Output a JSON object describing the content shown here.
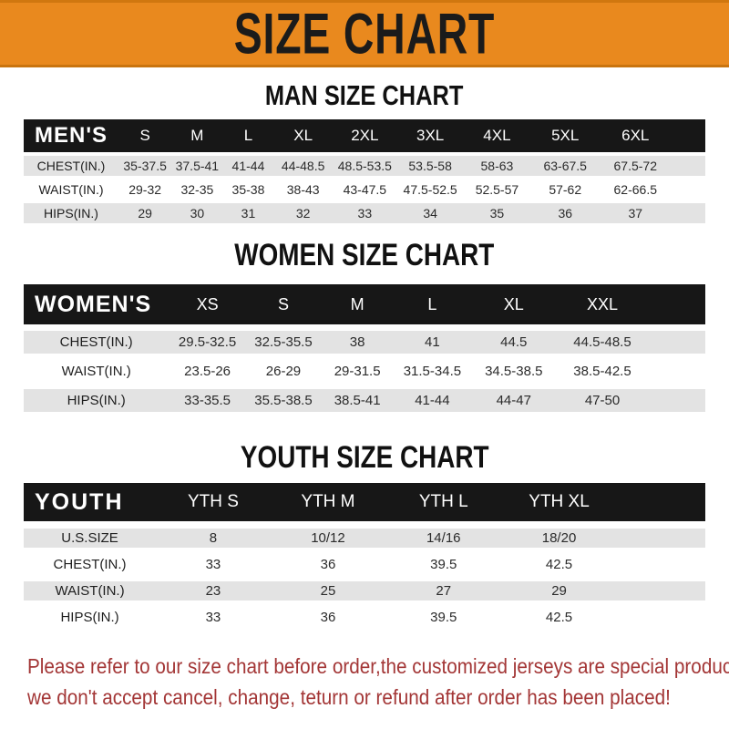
{
  "header": {
    "title": "SIZE CHART"
  },
  "colors": {
    "banner_bg": "#E9891E",
    "banner_edge": "#C9740F",
    "bar_bg": "#171717",
    "bar_text": "#FFFFFF",
    "stripe_gray": "#E3E3E3",
    "note_red": "#A33636"
  },
  "sections": [
    {
      "title": "MAN SIZE CHART",
      "label": "MEN'S",
      "columns": [
        "S",
        "M",
        "L",
        "XL",
        "2XL",
        "3XL",
        "4XL",
        "5XL",
        "6XL"
      ],
      "rows": [
        {
          "label": "CHEST(IN.)",
          "values": [
            "35-37.5",
            "37.5-41",
            "41-44",
            "44-48.5",
            "48.5-53.5",
            "53.5-58",
            "58-63",
            "63-67.5",
            "67.5-72"
          ]
        },
        {
          "label": "WAIST(IN.)",
          "values": [
            "29-32",
            "32-35",
            "35-38",
            "38-43",
            "43-47.5",
            "47.5-52.5",
            "52.5-57",
            "57-62",
            "62-66.5"
          ]
        },
        {
          "label": "HIPS(IN.)",
          "values": [
            "29",
            "30",
            "31",
            "32",
            "33",
            "34",
            "35",
            "36",
            "37"
          ]
        }
      ]
    },
    {
      "title": "WOMEN SIZE CHART",
      "label": "WOMEN'S",
      "columns": [
        "XS",
        "S",
        "M",
        "L",
        "XL",
        "XXL"
      ],
      "rows": [
        {
          "label": "CHEST(IN.)",
          "values": [
            "29.5-32.5",
            "32.5-35.5",
            "38",
            "41",
            "44.5",
            "44.5-48.5"
          ]
        },
        {
          "label": "WAIST(IN.)",
          "values": [
            "23.5-26",
            "26-29",
            "29-31.5",
            "31.5-34.5",
            "34.5-38.5",
            "38.5-42.5"
          ]
        },
        {
          "label": "HIPS(IN.)",
          "values": [
            "33-35.5",
            "35.5-38.5",
            "38.5-41",
            "41-44",
            "44-47",
            "47-50"
          ]
        }
      ]
    },
    {
      "title": "YOUTH SIZE CHART",
      "label": "YOUTH",
      "columns": [
        "YTH S",
        "YTH M",
        "YTH L",
        "YTH XL"
      ],
      "rows": [
        {
          "label": "U.S.SIZE",
          "values": [
            "8",
            "10/12",
            "14/16",
            "18/20"
          ]
        },
        {
          "label": "CHEST(IN.)",
          "values": [
            "33",
            "36",
            "39.5",
            "42.5"
          ]
        },
        {
          "label": "WAIST(IN.)",
          "values": [
            "23",
            "25",
            "27",
            "29"
          ]
        },
        {
          "label": "HIPS(IN.)",
          "values": [
            "33",
            "36",
            "39.5",
            "42.5"
          ]
        }
      ]
    }
  ],
  "footer": {
    "line1": "Please refer to our size chart before order,the customized jerseys are special products,",
    "line2": "we don't accept cancel, change, teturn or refund after order has been placed!"
  }
}
